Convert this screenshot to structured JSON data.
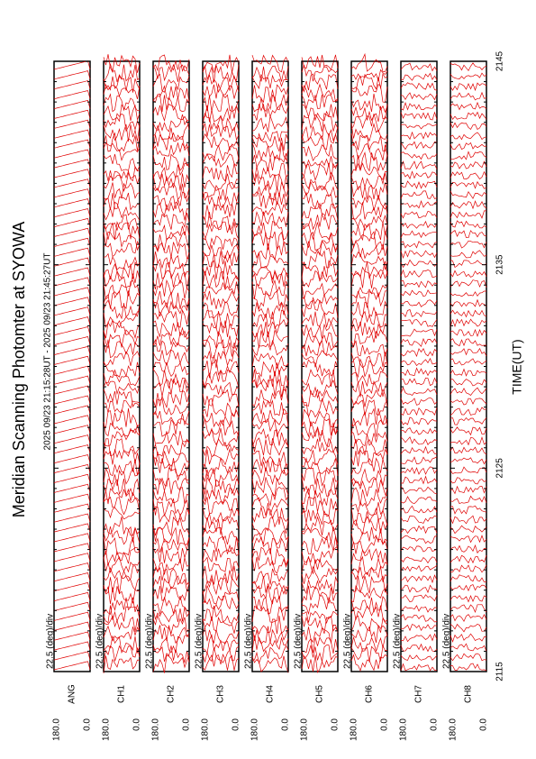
{
  "title": "Meridian Scanning Photomter at SYOWA",
  "time_range": "2025 09/23 21:15:28UT - 2025 09/23 21:45:27UT",
  "x_label": "TIME(UT)",
  "x_ticks": [
    "2115",
    "2125",
    "2135",
    "2145"
  ],
  "panels": [
    {
      "label": "ANG",
      "scale": "22.5 (deg)/div",
      "top": "180.0",
      "bottom": "0.0"
    },
    {
      "label": "CH1",
      "scale": "22.5 (deg)/div",
      "top": "180.0",
      "bottom": "0.0"
    },
    {
      "label": "CH2",
      "scale": "22.5 (deg)/div",
      "top": "180.0",
      "bottom": "0.0"
    },
    {
      "label": "CH3",
      "scale": "22.5 (deg)/div",
      "top": "180.0",
      "bottom": "0.0"
    },
    {
      "label": "CH4",
      "scale": "22.5 (deg)/div",
      "top": "180.0",
      "bottom": "0.0"
    },
    {
      "label": "CH5",
      "scale": "22.5 (deg)/div",
      "top": "180.0",
      "bottom": "0.0"
    },
    {
      "label": "CH6",
      "scale": "22.5 (deg)/div",
      "top": "180.0",
      "bottom": "0.0"
    },
    {
      "label": "CH7",
      "scale": "22.5 (deg)/div",
      "top": "180.0",
      "bottom": "0.0"
    },
    {
      "label": "CH8",
      "scale": "22.5 (deg)/div",
      "top": "180.0",
      "bottom": "0.0"
    }
  ]
}
